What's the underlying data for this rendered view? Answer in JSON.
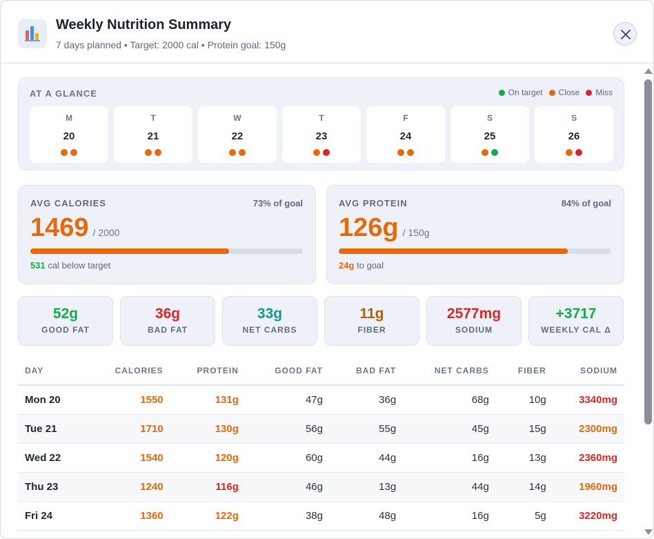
{
  "header": {
    "title": "Weekly Nutrition Summary",
    "subtitle": "7 days planned • Target: 2000 cal • Protein goal: 150g",
    "app_icon": "bar-chart-icon",
    "close_icon": "close-icon"
  },
  "glance": {
    "label": "AT A GLANCE",
    "legend": [
      {
        "label": "On target",
        "color": "#1aa84f"
      },
      {
        "label": "Close",
        "color": "#e8690c"
      },
      {
        "label": "Miss",
        "color": "#d92626"
      }
    ],
    "days": [
      {
        "letter": "M",
        "num": "20",
        "dots": [
          "#e8690c",
          "#e8690c"
        ]
      },
      {
        "letter": "T",
        "num": "21",
        "dots": [
          "#e8690c",
          "#e8690c"
        ]
      },
      {
        "letter": "W",
        "num": "22",
        "dots": [
          "#e8690c",
          "#e8690c"
        ]
      },
      {
        "letter": "T",
        "num": "23",
        "dots": [
          "#e8690c",
          "#d92626"
        ]
      },
      {
        "letter": "F",
        "num": "24",
        "dots": [
          "#e8690c",
          "#e8690c"
        ]
      },
      {
        "letter": "S",
        "num": "25",
        "dots": [
          "#e8690c",
          "#1aa84f"
        ]
      },
      {
        "letter": "S",
        "num": "26",
        "dots": [
          "#e8690c",
          "#d92626"
        ]
      }
    ]
  },
  "avg_calories": {
    "label": "AVG CALORIES",
    "pct": "73% of goal",
    "progress": 0.73,
    "value": "1469",
    "target": "/ 2000",
    "note_value": "531",
    "note_text": " cal below target",
    "note_color": "#1aa84f"
  },
  "avg_protein": {
    "label": "AVG PROTEIN",
    "pct": "84% of goal",
    "progress": 0.84,
    "value": "126g",
    "target": "/ 150g",
    "note_value": "24g",
    "note_text": " to goal",
    "note_color": "#e8690c"
  },
  "stats": [
    {
      "value": "52g",
      "label": "GOOD FAT",
      "color": "#1aa84f"
    },
    {
      "value": "36g",
      "label": "BAD FAT",
      "color": "#d92626"
    },
    {
      "value": "33g",
      "label": "NET CARBS",
      "color": "#12998a"
    },
    {
      "value": "11g",
      "label": "FIBER",
      "color": "#a8650b"
    },
    {
      "value": "2577mg",
      "label": "SODIUM",
      "color": "#d92626"
    },
    {
      "value": "+3717",
      "label": "WEEKLY CAL Δ",
      "color": "#1aa84f"
    }
  ],
  "table": {
    "columns": [
      "DAY",
      "CALORIES",
      "PROTEIN",
      "GOOD FAT",
      "BAD FAT",
      "NET CARBS",
      "FIBER",
      "SODIUM"
    ],
    "rows": [
      {
        "cells": [
          "Mon 20",
          "1550",
          "131g",
          "47g",
          "36g",
          "68g",
          "10g",
          "3340mg"
        ],
        "styles": [
          "first",
          "orange",
          "orange",
          "",
          "",
          "",
          "",
          "red"
        ]
      },
      {
        "cells": [
          "Tue 21",
          "1710",
          "130g",
          "56g",
          "55g",
          "45g",
          "15g",
          "2300mg"
        ],
        "styles": [
          "first",
          "orange",
          "orange",
          "",
          "",
          "",
          "",
          "orange"
        ]
      },
      {
        "cells": [
          "Wed 22",
          "1540",
          "120g",
          "60g",
          "44g",
          "16g",
          "13g",
          "2360mg"
        ],
        "styles": [
          "first",
          "orange",
          "orange",
          "",
          "",
          "",
          "",
          "red"
        ]
      },
      {
        "cells": [
          "Thu 23",
          "1240",
          "116g",
          "46g",
          "13g",
          "44g",
          "14g",
          "1960mg"
        ],
        "styles": [
          "first",
          "orange",
          "red",
          "",
          "",
          "",
          "",
          "orange"
        ]
      },
      {
        "cells": [
          "Fri 24",
          "1360",
          "122g",
          "38g",
          "48g",
          "16g",
          "5g",
          "3220mg"
        ],
        "styles": [
          "first",
          "orange",
          "orange",
          "",
          "",
          "",
          "",
          "red"
        ]
      }
    ]
  }
}
